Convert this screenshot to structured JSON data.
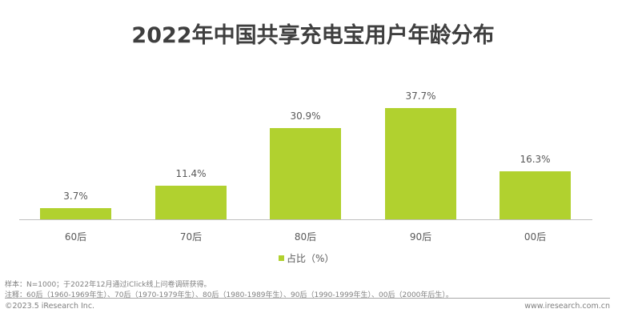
{
  "title": "2022年中国共享充电宝用户年龄分布",
  "chart_data": {
    "type": "bar",
    "title": "2022年中国共享充电宝用户年龄分布",
    "categories": [
      "60后",
      "70后",
      "80后",
      "90后",
      "00后"
    ],
    "series": [
      {
        "name": "占比（%）",
        "values": [
          3.7,
          11.4,
          30.9,
          37.7,
          16.3
        ],
        "color": "#b1d12f"
      }
    ],
    "value_labels": [
      "3.7%",
      "11.4%",
      "30.9%",
      "37.7%",
      "16.3%"
    ],
    "xlabel": "",
    "ylabel": "",
    "ylim": [
      0,
      40
    ],
    "grid": false,
    "y_axis_visible": false,
    "legend_position": "bottom"
  },
  "legend": {
    "label": "占比（%）"
  },
  "notes": {
    "sample": "样本：N=1000；于2022年12月通过iClick线上问卷调研获得。",
    "annotation": "注释：60后（1960-1969年生）、70后（1970-1979年生）、80后（1980-1989年生）、90后（1990-1999年生）、00后（2000年后生）。"
  },
  "footer": {
    "copyright": "©2023.5 iResearch Inc.",
    "website": "www.iresearch.com.cn"
  }
}
